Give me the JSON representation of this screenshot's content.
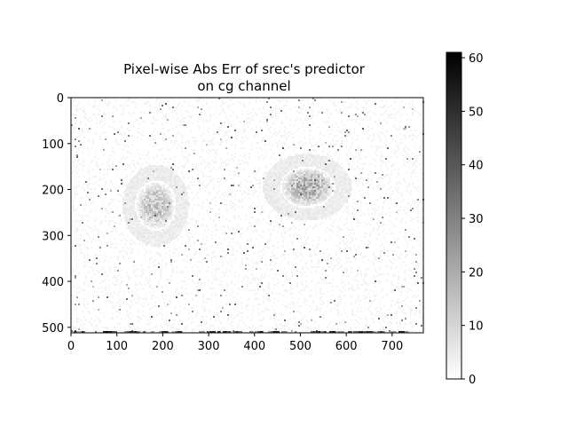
{
  "chart_data": {
    "type": "heatmap",
    "title_line1": "Pixel-wise Abs Err of srec's predictor",
    "title_line2": "on cg channel",
    "xlabel": "",
    "ylabel": "",
    "xlim": [
      0,
      768
    ],
    "ylim": [
      512,
      0
    ],
    "x_ticks": [
      0,
      100,
      200,
      300,
      400,
      500,
      600,
      700
    ],
    "y_ticks": [
      0,
      100,
      200,
      300,
      400,
      500
    ],
    "colorbar": {
      "min": 0,
      "max": 61,
      "ticks": [
        0,
        10,
        20,
        30,
        40,
        50,
        60
      ],
      "colormap": "gray_r"
    },
    "error_regions": [
      {
        "name": "left subject",
        "x": 185,
        "y": 235,
        "rx": 45,
        "ry": 55,
        "level": 0.3
      },
      {
        "name": "right subject",
        "x": 515,
        "y": 195,
        "rx": 60,
        "ry": 45,
        "level": 0.38
      }
    ],
    "bottom_row_error": "high",
    "image_size": [
      768,
      512
    ]
  },
  "colors": {
    "low": "#ffffff",
    "high": "#000000",
    "axis": "#000000"
  }
}
